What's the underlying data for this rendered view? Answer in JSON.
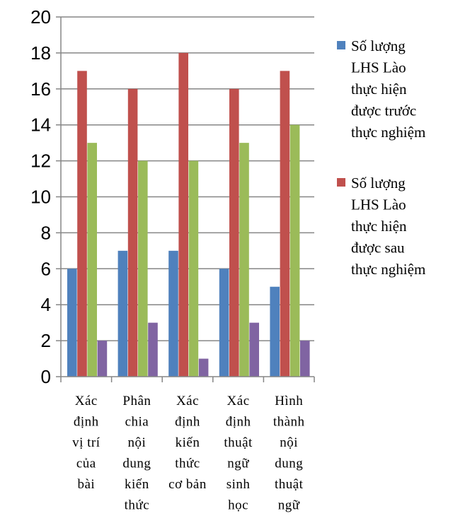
{
  "chart_data": {
    "type": "bar",
    "categories": [
      [
        "Xác",
        "định",
        "vị trí",
        "của",
        "bài"
      ],
      [
        "Phân",
        "chia",
        "nội",
        "dung",
        "kiến",
        "thức"
      ],
      [
        "Xác",
        "định",
        "kiến",
        "thức",
        "cơ bản"
      ],
      [
        "Xác",
        "định",
        "thuật",
        "ngữ",
        "sinh",
        "học"
      ],
      [
        "Hình",
        "thành",
        "nội",
        "dung",
        "thuật",
        "ngữ"
      ]
    ],
    "series": [
      {
        "name": [
          "Số lượng",
          "LHS Lào",
          "thực hiện",
          "được trước",
          "thực nghiệm"
        ],
        "color": "#4f81bd",
        "values": [
          6,
          7,
          7,
          6,
          5
        ]
      },
      {
        "name": [
          "Số lượng",
          "LHS Lào",
          "thực hiện",
          "được sau",
          "thực nghiệm"
        ],
        "color": "#c0504d",
        "values": [
          17,
          16,
          18,
          16,
          17
        ]
      },
      {
        "color": "#9bbb59",
        "values": [
          13,
          12,
          12,
          13,
          14
        ]
      },
      {
        "color": "#8064a2",
        "values": [
          2,
          3,
          1,
          3,
          2
        ]
      }
    ],
    "ylim": [
      0,
      20
    ],
    "ytick_step": 2,
    "grid": true,
    "legend_position": "right"
  }
}
